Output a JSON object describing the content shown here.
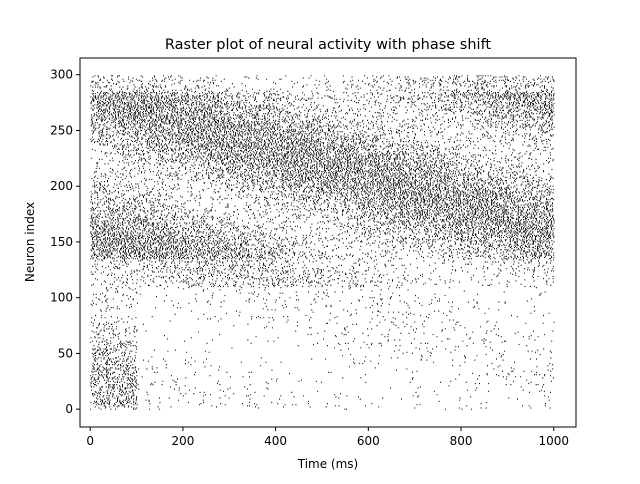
{
  "chart_data": {
    "type": "raster",
    "title": "Raster plot of neural activity with phase shift",
    "xlabel": "Time (ms)",
    "ylabel": "Neuron index",
    "xlim": [
      -22,
      1048
    ],
    "ylim": [
      -16,
      315
    ],
    "xticks": [
      0,
      200,
      400,
      600,
      800,
      1000
    ],
    "yticks": [
      0,
      50,
      100,
      150,
      200,
      250,
      300
    ],
    "num_neurons": 300,
    "duration_ms": 1000,
    "grid": false,
    "legend": "none",
    "spike_color": "#000000",
    "activity_profile": [
      {
        "neurons": [
          0,
          110
        ],
        "t_ms": [
          0,
          100
        ],
        "density": "high"
      },
      {
        "neurons": [
          0,
          110
        ],
        "t_ms": [
          100,
          1000
        ],
        "density": "low"
      },
      {
        "neurons": [
          110,
          135
        ],
        "t_ms": [
          0,
          1000
        ],
        "density": "medium"
      },
      {
        "neurons": [
          135,
          285
        ],
        "t_ms": [
          0,
          1000
        ],
        "density": "very high"
      },
      {
        "neurons": [
          285,
          300
        ],
        "t_ms": [
          0,
          1000
        ],
        "density": "medium"
      }
    ]
  }
}
